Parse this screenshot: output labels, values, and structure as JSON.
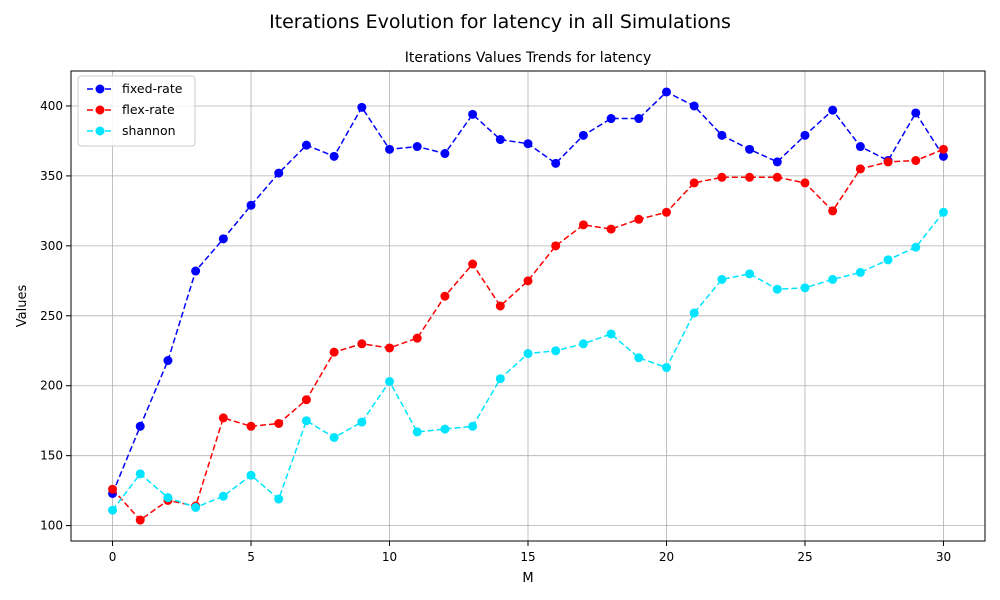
{
  "chart_data": {
    "type": "line",
    "suptitle": "Iterations Evolution for latency in all Simulations",
    "title": "Iterations Values Trends for latency",
    "xlabel": "M",
    "ylabel": "Values",
    "xlim": [
      -1.5,
      31.5
    ],
    "ylim": [
      89,
      425
    ],
    "xticks": [
      0,
      5,
      10,
      15,
      20,
      25,
      30
    ],
    "yticks": [
      100,
      150,
      200,
      250,
      300,
      350,
      400
    ],
    "grid": true,
    "legend_position": "upper-left",
    "x": [
      0,
      1,
      2,
      3,
      4,
      5,
      6,
      7,
      8,
      9,
      10,
      11,
      12,
      13,
      14,
      15,
      16,
      17,
      18,
      19,
      20,
      21,
      22,
      23,
      24,
      25,
      26,
      27,
      28,
      29,
      30
    ],
    "series": [
      {
        "name": "fixed-rate",
        "color": "#0000ff",
        "marker": "circle",
        "line_style": "dashed",
        "values": [
          123,
          171,
          218,
          282,
          305,
          329,
          352,
          372,
          364,
          399,
          369,
          371,
          366,
          394,
          376,
          373,
          359,
          379,
          391,
          391,
          410,
          400,
          379,
          369,
          360,
          379,
          397,
          371,
          361,
          395,
          364
        ]
      },
      {
        "name": "flex-rate",
        "color": "#ff0000",
        "marker": "circle",
        "line_style": "dashed",
        "values": [
          126,
          104,
          118,
          114,
          177,
          171,
          173,
          190,
          224,
          230,
          227,
          234,
          264,
          287,
          257,
          275,
          300,
          315,
          312,
          319,
          324,
          345,
          349,
          349,
          349,
          345,
          325,
          355,
          360,
          361,
          369
        ]
      },
      {
        "name": "shannon",
        "color": "#00e5ff",
        "marker": "circle",
        "line_style": "dashed",
        "values": [
          111,
          137,
          120,
          113,
          121,
          136,
          119,
          175,
          163,
          174,
          203,
          167,
          169,
          171,
          205,
          223,
          225,
          230,
          237,
          220,
          213,
          252,
          276,
          280,
          269,
          270,
          276,
          281,
          290,
          299,
          324
        ]
      }
    ]
  }
}
